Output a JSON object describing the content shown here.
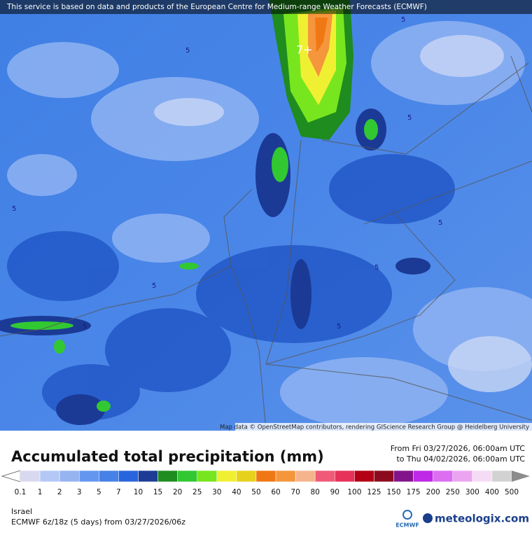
{
  "header": {
    "banner": "This service is based on data and products of the European Centre for Medium-range Weather Forecasts (ECMWF)"
  },
  "map": {
    "labels": [
      "5",
      "5",
      "5",
      "5",
      "5",
      "5",
      "5",
      "5",
      "5",
      "7+"
    ],
    "attribution": "Map data © OpenStreetMap contributors, rendering GIScience Research Group @ Heidelberg University"
  },
  "legend": {
    "title": "Accumulated total precipitation (mm)",
    "from": "From Fri 03/27/2026, 06:00am UTC",
    "to": "to Thu 04/02/2026, 06:00am UTC",
    "ticks": [
      "0.1",
      "1",
      "2",
      "3",
      "5",
      "7",
      "10",
      "15",
      "20",
      "25",
      "30",
      "40",
      "50",
      "60",
      "70",
      "80",
      "90",
      "100",
      "125",
      "150",
      "175",
      "200",
      "250",
      "300",
      "400",
      "500"
    ],
    "colors": [
      "#ffffff",
      "#d8d8f0",
      "#b4c8f5",
      "#96b4f0",
      "#6496f0",
      "#4682e6",
      "#2864dc",
      "#1e3c96",
      "#1e8c1e",
      "#32c832",
      "#78e61e",
      "#f0f032",
      "#e6d21e",
      "#f07814",
      "#f5963c",
      "#f5b48c",
      "#f05a78",
      "#e6325a",
      "#b40014",
      "#8c0a1e",
      "#82148c",
      "#be28e6",
      "#dc6ef0",
      "#eba5f0",
      "#f5dcf5",
      "#d2d2d2",
      "#8c8c8c"
    ]
  },
  "footer": {
    "region": "Israel",
    "model": "ECMWF 6z/18z (5 days) from 03/27/2026/06z",
    "logo_left": "ECMWF",
    "logo_right": "meteologix.com"
  }
}
